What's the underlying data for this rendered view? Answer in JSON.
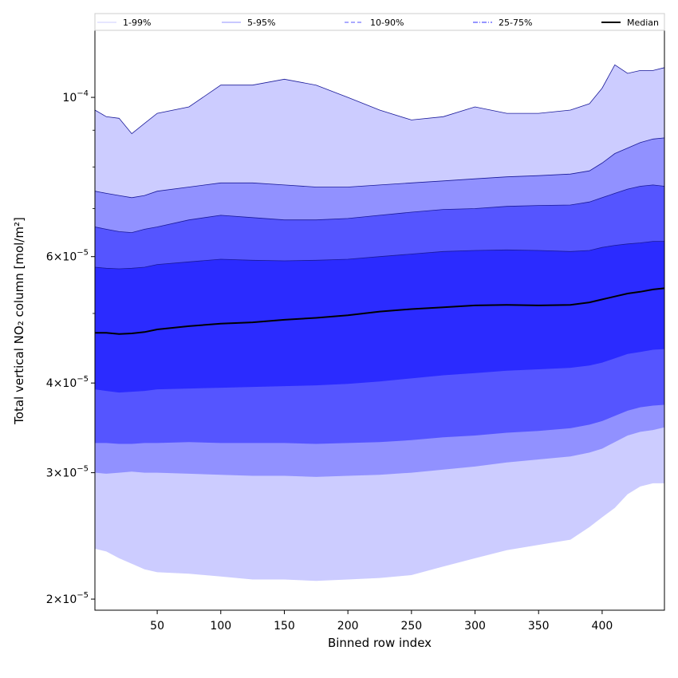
{
  "chart_data": {
    "type": "area",
    "title": "",
    "xlabel": "Binned row index",
    "ylabel": "Total vertical NO₂ column [mol/m²]",
    "xlim": [
      1,
      449
    ],
    "ylim": [
      1.93e-05,
      0.000124
    ],
    "yscale": "log",
    "x_ticks": [
      50,
      100,
      150,
      200,
      250,
      300,
      350,
      400
    ],
    "y_ticks": [
      {
        "value": 2e-05,
        "mantissa": "2",
        "exponent": "−5"
      },
      {
        "value": 3e-05,
        "mantissa": "3",
        "exponent": "−5"
      },
      {
        "value": 4e-05,
        "mantissa": "4",
        "exponent": "−5"
      },
      {
        "value": 6e-05,
        "mantissa": "6",
        "exponent": "−5"
      },
      {
        "value": 0.0001,
        "mantissa": "10",
        "exponent": "−4"
      }
    ],
    "y_minor_ticks": [
      5e-05,
      7e-05,
      8e-05,
      9e-05
    ],
    "grid": false,
    "legend_position": "top",
    "x": [
      1,
      10,
      20,
      30,
      40,
      50,
      75,
      100,
      125,
      150,
      175,
      200,
      225,
      250,
      275,
      300,
      325,
      350,
      375,
      390,
      400,
      410,
      420,
      430,
      440,
      449
    ],
    "bands": [
      {
        "name": "1-99%",
        "fill": "#ccccff",
        "lower": [
          2.35e-05,
          2.33e-05,
          2.28e-05,
          2.24e-05,
          2.2e-05,
          2.18e-05,
          2.17e-05,
          2.15e-05,
          2.13e-05,
          2.13e-05,
          2.12e-05,
          2.13e-05,
          2.14e-05,
          2.16e-05,
          2.22e-05,
          2.28e-05,
          2.34e-05,
          2.38e-05,
          2.42e-05,
          2.52e-05,
          2.6e-05,
          2.68e-05,
          2.8e-05,
          2.87e-05,
          2.9e-05,
          2.9e-05
        ],
        "upper": [
          9.6e-05,
          9.4e-05,
          9.35e-05,
          8.9e-05,
          9.2e-05,
          9.5e-05,
          9.7e-05,
          0.000104,
          0.000104,
          0.000106,
          0.000104,
          0.0001,
          9.6e-05,
          9.3e-05,
          9.4e-05,
          9.7e-05,
          9.5e-05,
          9.5e-05,
          9.6e-05,
          9.8e-05,
          0.000103,
          0.000111,
          0.000108,
          0.000109,
          0.000109,
          0.00011
        ]
      },
      {
        "name": "5-95%",
        "fill": "#9191ff",
        "lower": [
          3e-05,
          2.99e-05,
          3e-05,
          3.01e-05,
          3e-05,
          3e-05,
          2.99e-05,
          2.98e-05,
          2.97e-05,
          2.97e-05,
          2.96e-05,
          2.97e-05,
          2.98e-05,
          3e-05,
          3.03e-05,
          3.06e-05,
          3.1e-05,
          3.13e-05,
          3.16e-05,
          3.2e-05,
          3.24e-05,
          3.31e-05,
          3.38e-05,
          3.42e-05,
          3.44e-05,
          3.47e-05
        ],
        "upper": [
          7.4e-05,
          7.35e-05,
          7.3e-05,
          7.25e-05,
          7.3e-05,
          7.4e-05,
          7.5e-05,
          7.6e-05,
          7.6e-05,
          7.55e-05,
          7.5e-05,
          7.5e-05,
          7.55e-05,
          7.6e-05,
          7.65e-05,
          7.7e-05,
          7.75e-05,
          7.78e-05,
          7.82e-05,
          7.9e-05,
          8.1e-05,
          8.35e-05,
          8.5e-05,
          8.65e-05,
          8.75e-05,
          8.78e-05
        ]
      },
      {
        "name": "10-90%",
        "fill": "#5555ff",
        "lower": [
          3.3e-05,
          3.3e-05,
          3.29e-05,
          3.29e-05,
          3.3e-05,
          3.3e-05,
          3.31e-05,
          3.3e-05,
          3.3e-05,
          3.3e-05,
          3.29e-05,
          3.3e-05,
          3.31e-05,
          3.33e-05,
          3.36e-05,
          3.38e-05,
          3.41e-05,
          3.43e-05,
          3.46e-05,
          3.5e-05,
          3.54e-05,
          3.6e-05,
          3.66e-05,
          3.7e-05,
          3.72e-05,
          3.73e-05
        ],
        "upper": [
          6.6e-05,
          6.55e-05,
          6.5e-05,
          6.48e-05,
          6.55e-05,
          6.6e-05,
          6.75e-05,
          6.85e-05,
          6.8e-05,
          6.75e-05,
          6.75e-05,
          6.78e-05,
          6.85e-05,
          6.92e-05,
          6.98e-05,
          7e-05,
          7.05e-05,
          7.07e-05,
          7.08e-05,
          7.15e-05,
          7.25e-05,
          7.35e-05,
          7.45e-05,
          7.52e-05,
          7.55e-05,
          7.52e-05
        ]
      },
      {
        "name": "25-75%",
        "fill": "#2b2bff",
        "lower": [
          3.92e-05,
          3.9e-05,
          3.88e-05,
          3.89e-05,
          3.9e-05,
          3.92e-05,
          3.93e-05,
          3.94e-05,
          3.95e-05,
          3.96e-05,
          3.97e-05,
          3.99e-05,
          4.02e-05,
          4.06e-05,
          4.1e-05,
          4.13e-05,
          4.16e-05,
          4.18e-05,
          4.2e-05,
          4.23e-05,
          4.27e-05,
          4.33e-05,
          4.39e-05,
          4.42e-05,
          4.45e-05,
          4.46e-05
        ],
        "upper": [
          5.8e-05,
          5.78e-05,
          5.77e-05,
          5.78e-05,
          5.8e-05,
          5.85e-05,
          5.9e-05,
          5.95e-05,
          5.93e-05,
          5.92e-05,
          5.93e-05,
          5.95e-05,
          6e-05,
          6.05e-05,
          6.1e-05,
          6.12e-05,
          6.13e-05,
          6.12e-05,
          6.1e-05,
          6.12e-05,
          6.18e-05,
          6.22e-05,
          6.25e-05,
          6.27e-05,
          6.3e-05,
          6.3e-05
        ]
      }
    ],
    "series": [
      {
        "name": "Median",
        "color": "#000000",
        "values": [
          4.7e-05,
          4.7e-05,
          4.68e-05,
          4.69e-05,
          4.71e-05,
          4.75e-05,
          4.8e-05,
          4.84e-05,
          4.86e-05,
          4.9e-05,
          4.93e-05,
          4.97e-05,
          5.03e-05,
          5.07e-05,
          5.1e-05,
          5.13e-05,
          5.14e-05,
          5.13e-05,
          5.14e-05,
          5.18e-05,
          5.23e-05,
          5.28e-05,
          5.33e-05,
          5.36e-05,
          5.4e-05,
          5.42e-05
        ]
      }
    ],
    "legend": [
      {
        "label": "1-99%",
        "color": "#ccccff",
        "style": "solid"
      },
      {
        "label": "5-95%",
        "color": "#9191ff",
        "style": "solid"
      },
      {
        "label": "10-90%",
        "color": "#5555ff",
        "style": "dashed"
      },
      {
        "label": "25-75%",
        "color": "#2b2bff",
        "style": "dashdot"
      },
      {
        "label": "Median",
        "color": "#000000",
        "style": "solid"
      }
    ]
  }
}
